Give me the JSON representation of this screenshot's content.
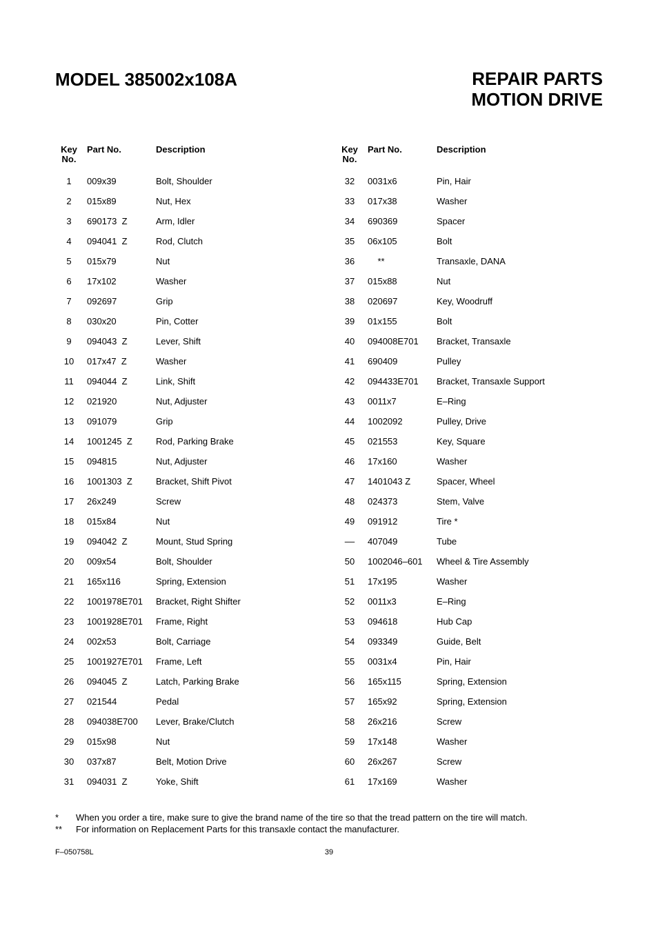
{
  "header": {
    "model": "MODEL 385002x108A",
    "section_line1": "REPAIR PARTS",
    "section_line2": "MOTION DRIVE"
  },
  "columns": {
    "key_label_line1": "Key",
    "key_label_line2": "No.",
    "part_label": "Part No.",
    "desc_label": "Description"
  },
  "parts_left": [
    {
      "key": "1",
      "part": "009x39",
      "desc": "Bolt, Shoulder"
    },
    {
      "key": "2",
      "part": "015x89",
      "desc": "Nut, Hex"
    },
    {
      "key": "3",
      "part": "690173  Z",
      "desc": "Arm, Idler"
    },
    {
      "key": "4",
      "part": "094041  Z",
      "desc": "Rod, Clutch"
    },
    {
      "key": "5",
      "part": "015x79",
      "desc": "Nut"
    },
    {
      "key": "6",
      "part": "17x102",
      "desc": "Washer"
    },
    {
      "key": "7",
      "part": "092697",
      "desc": "Grip"
    },
    {
      "key": "8",
      "part": "030x20",
      "desc": "Pin, Cotter"
    },
    {
      "key": "9",
      "part": "094043  Z",
      "desc": "Lever, Shift"
    },
    {
      "key": "10",
      "part": "017x47  Z",
      "desc": "Washer"
    },
    {
      "key": "11",
      "part": "094044  Z",
      "desc": "Link, Shift"
    },
    {
      "key": "12",
      "part": "021920",
      "desc": "Nut, Adjuster"
    },
    {
      "key": "13",
      "part": "091079",
      "desc": "Grip"
    },
    {
      "key": "14",
      "part": "1001245  Z",
      "desc": "Rod, Parking Brake"
    },
    {
      "key": "15",
      "part": "094815",
      "desc": "Nut, Adjuster"
    },
    {
      "key": "16",
      "part": "1001303  Z",
      "desc": "Bracket, Shift Pivot"
    },
    {
      "key": "17",
      "part": "26x249",
      "desc": "Screw"
    },
    {
      "key": "18",
      "part": "015x84",
      "desc": "Nut"
    },
    {
      "key": "19",
      "part": "094042  Z",
      "desc": "Mount, Stud Spring"
    },
    {
      "key": "20",
      "part": "009x54",
      "desc": "Bolt, Shoulder"
    },
    {
      "key": "21",
      "part": "165x116",
      "desc": "Spring, Extension"
    },
    {
      "key": "22",
      "part": "1001978E701",
      "desc": "Bracket, Right Shifter"
    },
    {
      "key": "23",
      "part": "1001928E701",
      "desc": "Frame, Right"
    },
    {
      "key": "24",
      "part": "002x53",
      "desc": "Bolt, Carriage"
    },
    {
      "key": "25",
      "part": "1001927E701",
      "desc": "Frame, Left"
    },
    {
      "key": "26",
      "part": "094045  Z",
      "desc": "Latch, Parking Brake"
    },
    {
      "key": "27",
      "part": "021544",
      "desc": "Pedal"
    },
    {
      "key": "28",
      "part": "094038E700",
      "desc": "Lever, Brake/Clutch"
    },
    {
      "key": "29",
      "part": "015x98",
      "desc": "Nut"
    },
    {
      "key": "30",
      "part": "037x87",
      "desc": "Belt, Motion Drive"
    },
    {
      "key": "31",
      "part": "094031  Z",
      "desc": "Yoke, Shift"
    }
  ],
  "parts_right": [
    {
      "key": "32",
      "part": "0031x6",
      "desc": "Pin, Hair"
    },
    {
      "key": "33",
      "part": "017x38",
      "desc": "Washer"
    },
    {
      "key": "34",
      "part": "690369",
      "desc": "Spacer"
    },
    {
      "key": "35",
      "part": "06x105",
      "desc": "Bolt"
    },
    {
      "key": "36",
      "part": "    **",
      "desc": "Transaxle, DANA"
    },
    {
      "key": "37",
      "part": "015x88",
      "desc": "Nut"
    },
    {
      "key": "38",
      "part": "020697",
      "desc": "Key, Woodruff"
    },
    {
      "key": "39",
      "part": "01x155",
      "desc": "Bolt"
    },
    {
      "key": "40",
      "part": "094008E701",
      "desc": "Bracket, Transaxle"
    },
    {
      "key": "41",
      "part": "690409",
      "desc": "Pulley"
    },
    {
      "key": "42",
      "part": "094433E701",
      "desc": "Bracket, Transaxle Support"
    },
    {
      "key": "43",
      "part": "0011x7",
      "desc": "E–Ring"
    },
    {
      "key": "44",
      "part": "1002092",
      "desc": "Pulley, Drive"
    },
    {
      "key": "45",
      "part": "021553",
      "desc": "Key, Square"
    },
    {
      "key": "46",
      "part": "17x160",
      "desc": "Washer"
    },
    {
      "key": "47",
      "part": "1401043 Z",
      "desc": "Spacer, Wheel"
    },
    {
      "key": "48",
      "part": "024373",
      "desc": "Stem, Valve"
    },
    {
      "key": "49",
      "part": "091912",
      "desc": "Tire *"
    },
    {
      "key": "––",
      "part": "407049",
      "desc": "Tube"
    },
    {
      "key": "50",
      "part": "1002046–601",
      "desc": "Wheel & Tire Assembly"
    },
    {
      "key": "51",
      "part": "17x195",
      "desc": "Washer"
    },
    {
      "key": "52",
      "part": "0011x3",
      "desc": "E–Ring"
    },
    {
      "key": "53",
      "part": "094618",
      "desc": "Hub Cap"
    },
    {
      "key": "54",
      "part": "093349",
      "desc": "Guide, Belt"
    },
    {
      "key": "55",
      "part": "0031x4",
      "desc": "Pin, Hair"
    },
    {
      "key": "56",
      "part": "165x115",
      "desc": "Spring, Extension"
    },
    {
      "key": "57",
      "part": "165x92",
      "desc": "Spring, Extension"
    },
    {
      "key": "58",
      "part": "26x216",
      "desc": "Screw"
    },
    {
      "key": "59",
      "part": "17x148",
      "desc": "Washer"
    },
    {
      "key": "60",
      "part": "26x267",
      "desc": "Screw"
    },
    {
      "key": "61",
      "part": "17x169",
      "desc": "Washer"
    }
  ],
  "notes": [
    {
      "sym": "*",
      "text": "When you order a tire, make sure to give the brand name of the tire so that the tread pattern on the tire will match."
    },
    {
      "sym": "**",
      "text": "For information on Replacement Parts for this transaxle contact the manufacturer."
    }
  ],
  "footer": {
    "doc": "F–050758L",
    "page": "39"
  }
}
